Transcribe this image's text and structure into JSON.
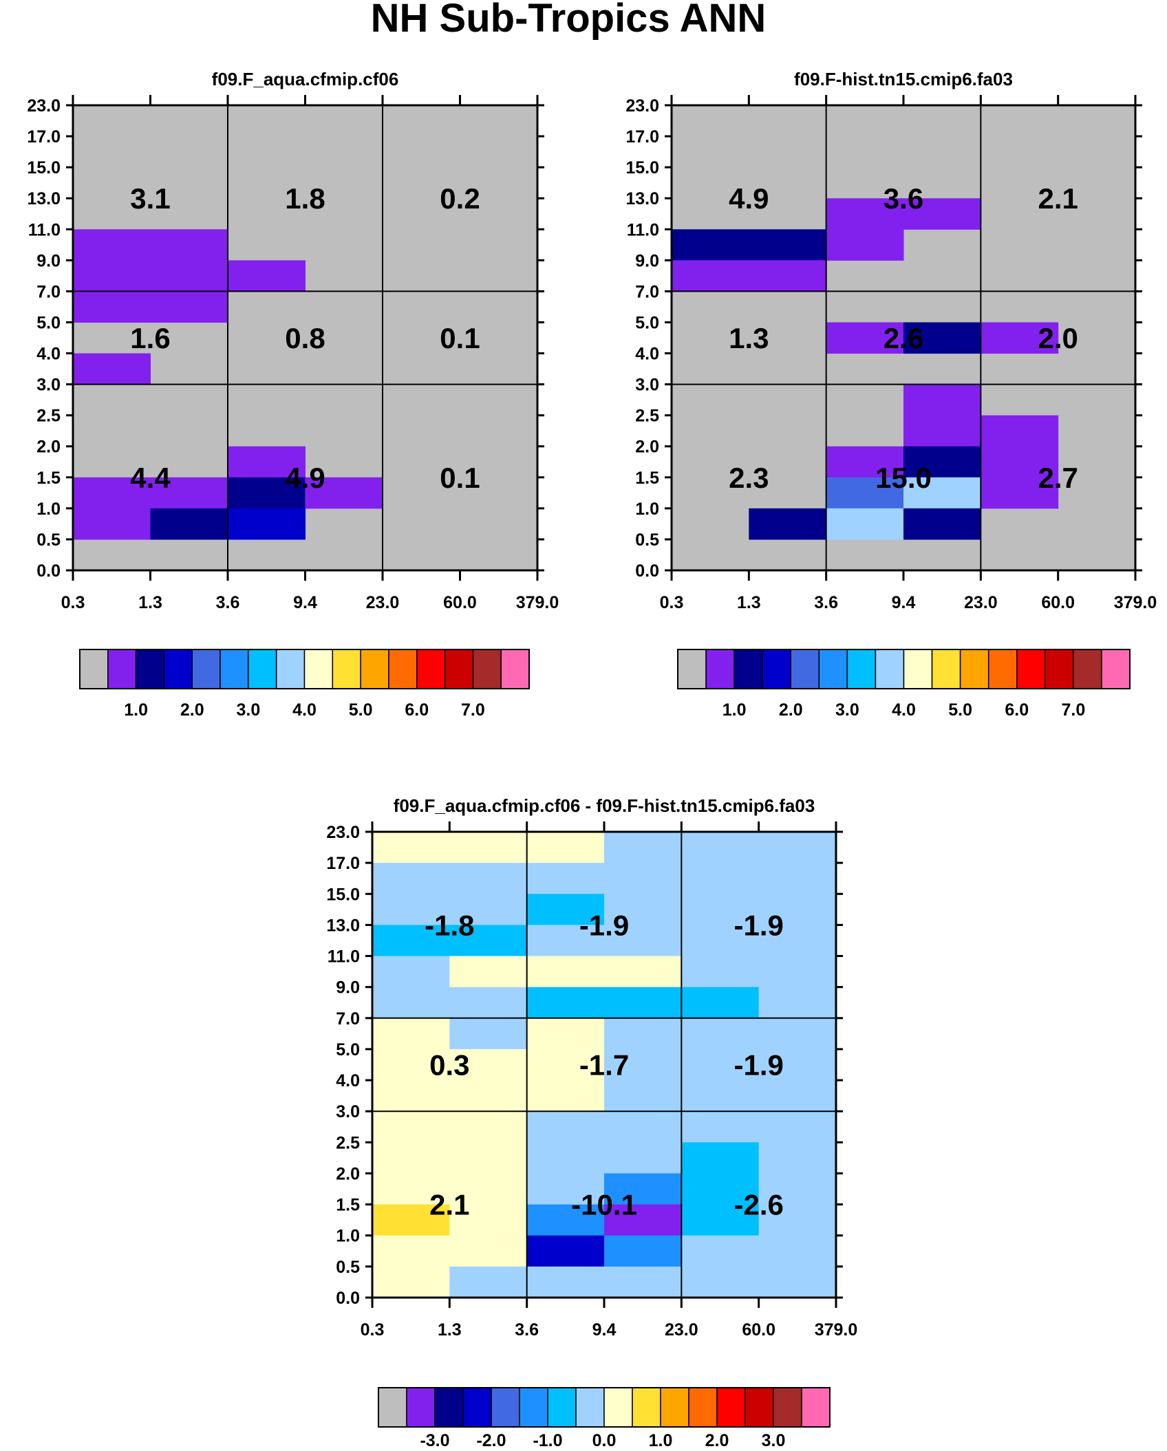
{
  "title": "NH Sub-Tropics ANN",
  "chart_data": [
    {
      "type": "heatmap",
      "title": "f09.F_aqua.cfmip.cf06",
      "x_tick_labels": [
        "0.3",
        "1.3",
        "3.6",
        "9.4",
        "23.0",
        "60.0",
        "379.0"
      ],
      "y_tick_labels": [
        "0.0",
        "0.5",
        "1.0",
        "1.5",
        "2.0",
        "2.5",
        "3.0",
        "4.0",
        "5.0",
        "7.0",
        "9.0",
        "11.0",
        "13.0",
        "15.0",
        "17.0",
        "23.0"
      ],
      "group_totals": [
        [
          "3.1",
          "1.8",
          "0.2"
        ],
        [
          "1.6",
          "0.8",
          "0.1"
        ],
        [
          "4.4",
          "4.9",
          "0.1"
        ]
      ],
      "cells": [
        [
          0,
          0,
          0,
          0,
          0,
          0
        ],
        [
          0,
          0,
          0,
          0,
          0,
          0
        ],
        [
          0,
          0,
          0,
          0,
          0,
          0
        ],
        [
          0,
          0,
          0,
          0,
          0,
          0
        ],
        [
          1,
          1,
          0,
          0,
          0,
          0
        ],
        [
          1,
          1,
          1,
          0,
          0,
          0
        ],
        [
          1,
          1,
          0,
          0,
          0,
          0
        ],
        [
          0,
          0,
          0,
          0,
          0,
          0
        ],
        [
          1,
          0,
          0,
          0,
          0,
          0
        ],
        [
          0,
          0,
          0,
          0,
          0,
          0
        ],
        [
          0,
          0,
          0,
          0,
          0,
          0
        ],
        [
          0,
          0,
          1,
          0,
          0,
          0
        ],
        [
          1,
          1,
          2,
          1,
          0,
          0
        ],
        [
          1,
          2,
          3,
          0,
          0,
          0
        ],
        [
          0,
          0,
          0,
          0,
          0,
          0
        ]
      ],
      "colorbar_labels": [
        "1.0",
        "2.0",
        "3.0",
        "4.0",
        "5.0",
        "6.0",
        "7.0"
      ]
    },
    {
      "type": "heatmap",
      "title": "f09.F-hist.tn15.cmip6.fa03",
      "x_tick_labels": [
        "0.3",
        "1.3",
        "3.6",
        "9.4",
        "23.0",
        "60.0",
        "379.0"
      ],
      "y_tick_labels": [
        "0.0",
        "0.5",
        "1.0",
        "1.5",
        "2.0",
        "2.5",
        "3.0",
        "4.0",
        "5.0",
        "7.0",
        "9.0",
        "11.0",
        "13.0",
        "15.0",
        "17.0",
        "23.0"
      ],
      "group_totals": [
        [
          "4.9",
          "3.6",
          "2.1"
        ],
        [
          "1.3",
          "2.6",
          "2.0"
        ],
        [
          "2.3",
          "15.0",
          "2.7"
        ]
      ],
      "cells": [
        [
          0,
          0,
          0,
          0,
          0,
          0
        ],
        [
          0,
          0,
          0,
          0,
          0,
          0
        ],
        [
          0,
          0,
          0,
          0,
          0,
          0
        ],
        [
          0,
          0,
          1,
          1,
          0,
          0
        ],
        [
          2,
          2,
          1,
          0,
          0,
          0
        ],
        [
          1,
          1,
          0,
          0,
          0,
          0
        ],
        [
          0,
          0,
          0,
          0,
          0,
          0
        ],
        [
          0,
          0,
          1,
          2,
          1,
          0
        ],
        [
          0,
          0,
          0,
          0,
          0,
          0
        ],
        [
          0,
          0,
          0,
          1,
          0,
          0
        ],
        [
          0,
          0,
          0,
          1,
          1,
          0
        ],
        [
          0,
          0,
          1,
          2,
          1,
          0
        ],
        [
          0,
          0,
          4,
          7,
          1,
          0
        ],
        [
          0,
          2,
          7,
          2,
          0,
          0
        ],
        [
          0,
          0,
          0,
          0,
          0,
          0
        ]
      ],
      "colorbar_labels": [
        "1.0",
        "2.0",
        "3.0",
        "4.0",
        "5.0",
        "6.0",
        "7.0"
      ]
    },
    {
      "type": "heatmap",
      "title": "f09.F_aqua.cfmip.cf06 - f09.F-hist.tn15.cmip6.fa03",
      "x_tick_labels": [
        "0.3",
        "1.3",
        "3.6",
        "9.4",
        "23.0",
        "60.0",
        "379.0"
      ],
      "y_tick_labels": [
        "0.0",
        "0.5",
        "1.0",
        "1.5",
        "2.0",
        "2.5",
        "3.0",
        "4.0",
        "5.0",
        "7.0",
        "9.0",
        "11.0",
        "13.0",
        "15.0",
        "17.0",
        "23.0"
      ],
      "group_totals": [
        [
          "-1.8",
          "-1.9",
          "-1.9"
        ],
        [
          "0.3",
          "-1.7",
          "-1.9"
        ],
        [
          "2.1",
          "-10.1",
          "-2.6"
        ]
      ],
      "cells": [
        [
          8,
          8,
          8,
          7,
          7,
          7
        ],
        [
          7,
          7,
          7,
          7,
          7,
          7
        ],
        [
          7,
          7,
          6,
          7,
          7,
          7
        ],
        [
          6,
          6,
          7,
          7,
          7,
          7
        ],
        [
          7,
          8,
          8,
          8,
          7,
          7
        ],
        [
          7,
          7,
          6,
          6,
          6,
          7
        ],
        [
          8,
          7,
          8,
          7,
          7,
          7
        ],
        [
          8,
          8,
          8,
          7,
          7,
          7
        ],
        [
          8,
          8,
          8,
          7,
          7,
          7
        ],
        [
          8,
          8,
          7,
          7,
          7,
          7
        ],
        [
          8,
          8,
          7,
          7,
          6,
          7
        ],
        [
          8,
          8,
          7,
          5,
          6,
          7
        ],
        [
          9,
          8,
          5,
          1,
          6,
          7
        ],
        [
          8,
          8,
          3,
          5,
          7,
          7
        ],
        [
          8,
          7,
          7,
          7,
          7,
          7
        ]
      ],
      "colorbar_labels": [
        "-3.0",
        "-2.0",
        "-1.0",
        "0.0",
        "1.0",
        "2.0",
        "3.0"
      ]
    }
  ],
  "colors": {
    "palette": [
      "#bebebe",
      "#8221ee",
      "#00008c",
      "#0000cd",
      "#4169e1",
      "#1e90ff",
      "#00bfff",
      "#a0d2ff",
      "#ffffcc",
      "#ffe033",
      "#ffa500",
      "#ff6b00",
      "#ff0000",
      "#cd0000",
      "#a52a2a",
      "#ff69b4"
    ],
    "plot_background": "#bebebe"
  }
}
